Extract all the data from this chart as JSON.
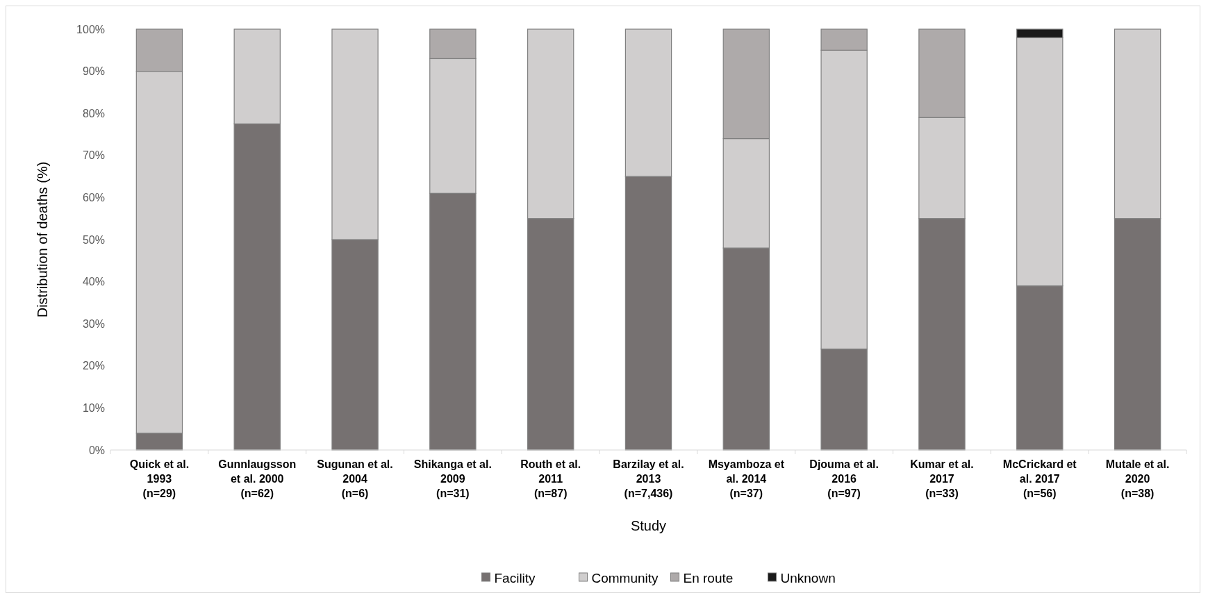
{
  "chart_data": {
    "type": "bar",
    "stacked": true,
    "xlabel": "Study",
    "ylabel": "Distribution of deaths (%)",
    "categories": [
      "Quick et al.\n1993\n(n=29)",
      "Gunnlaugsson\net al. 2000\n(n=62)",
      "Sugunan et al.\n2004\n(n=6)",
      "Shikanga et al.\n2009\n(n=31)",
      "Routh et al.\n2011\n(n=87)",
      "Barzilay et al.\n2013\n(n=7,436)",
      "Msyamboza et\nal. 2014\n(n=37)",
      "Djouma et al.\n2016\n(n=97)",
      "Kumar et al.\n2017\n(n=33)",
      "McCrickard et\nal. 2017\n(n=56)",
      "Mutale et al.\n2020\n(n=38)"
    ],
    "series": [
      {
        "name": "Facility",
        "color": "#767171",
        "values": [
          4,
          77.5,
          50,
          61,
          55,
          65,
          48,
          24,
          55,
          39,
          55
        ]
      },
      {
        "name": "Community",
        "color": "#d0cece",
        "values": [
          86,
          22.5,
          50,
          32,
          45,
          35,
          26,
          71,
          24,
          59,
          45
        ]
      },
      {
        "name": "En route",
        "color": "#aeaaaa",
        "values": [
          10,
          0,
          0,
          7,
          0,
          0,
          26,
          5,
          21,
          0,
          0
        ]
      },
      {
        "name": "Unknown",
        "color": "#1a1a1a",
        "values": [
          0,
          0,
          0,
          0,
          0,
          0,
          0,
          0,
          0,
          2,
          0
        ]
      }
    ],
    "ylim": [
      0,
      100
    ],
    "yticks": [
      {
        "value": 0,
        "label": "0%"
      },
      {
        "value": 10,
        "label": "10%"
      },
      {
        "value": 20,
        "label": "20%"
      },
      {
        "value": 30,
        "label": "30%"
      },
      {
        "value": 40,
        "label": "40%"
      },
      {
        "value": 50,
        "label": "50%"
      },
      {
        "value": 60,
        "label": "60%"
      },
      {
        "value": 70,
        "label": "70%"
      },
      {
        "value": 80,
        "label": "80%"
      },
      {
        "value": 90,
        "label": "90%"
      },
      {
        "value": 100,
        "label": "100%"
      }
    ],
    "grid": false,
    "legend": "bottom"
  }
}
